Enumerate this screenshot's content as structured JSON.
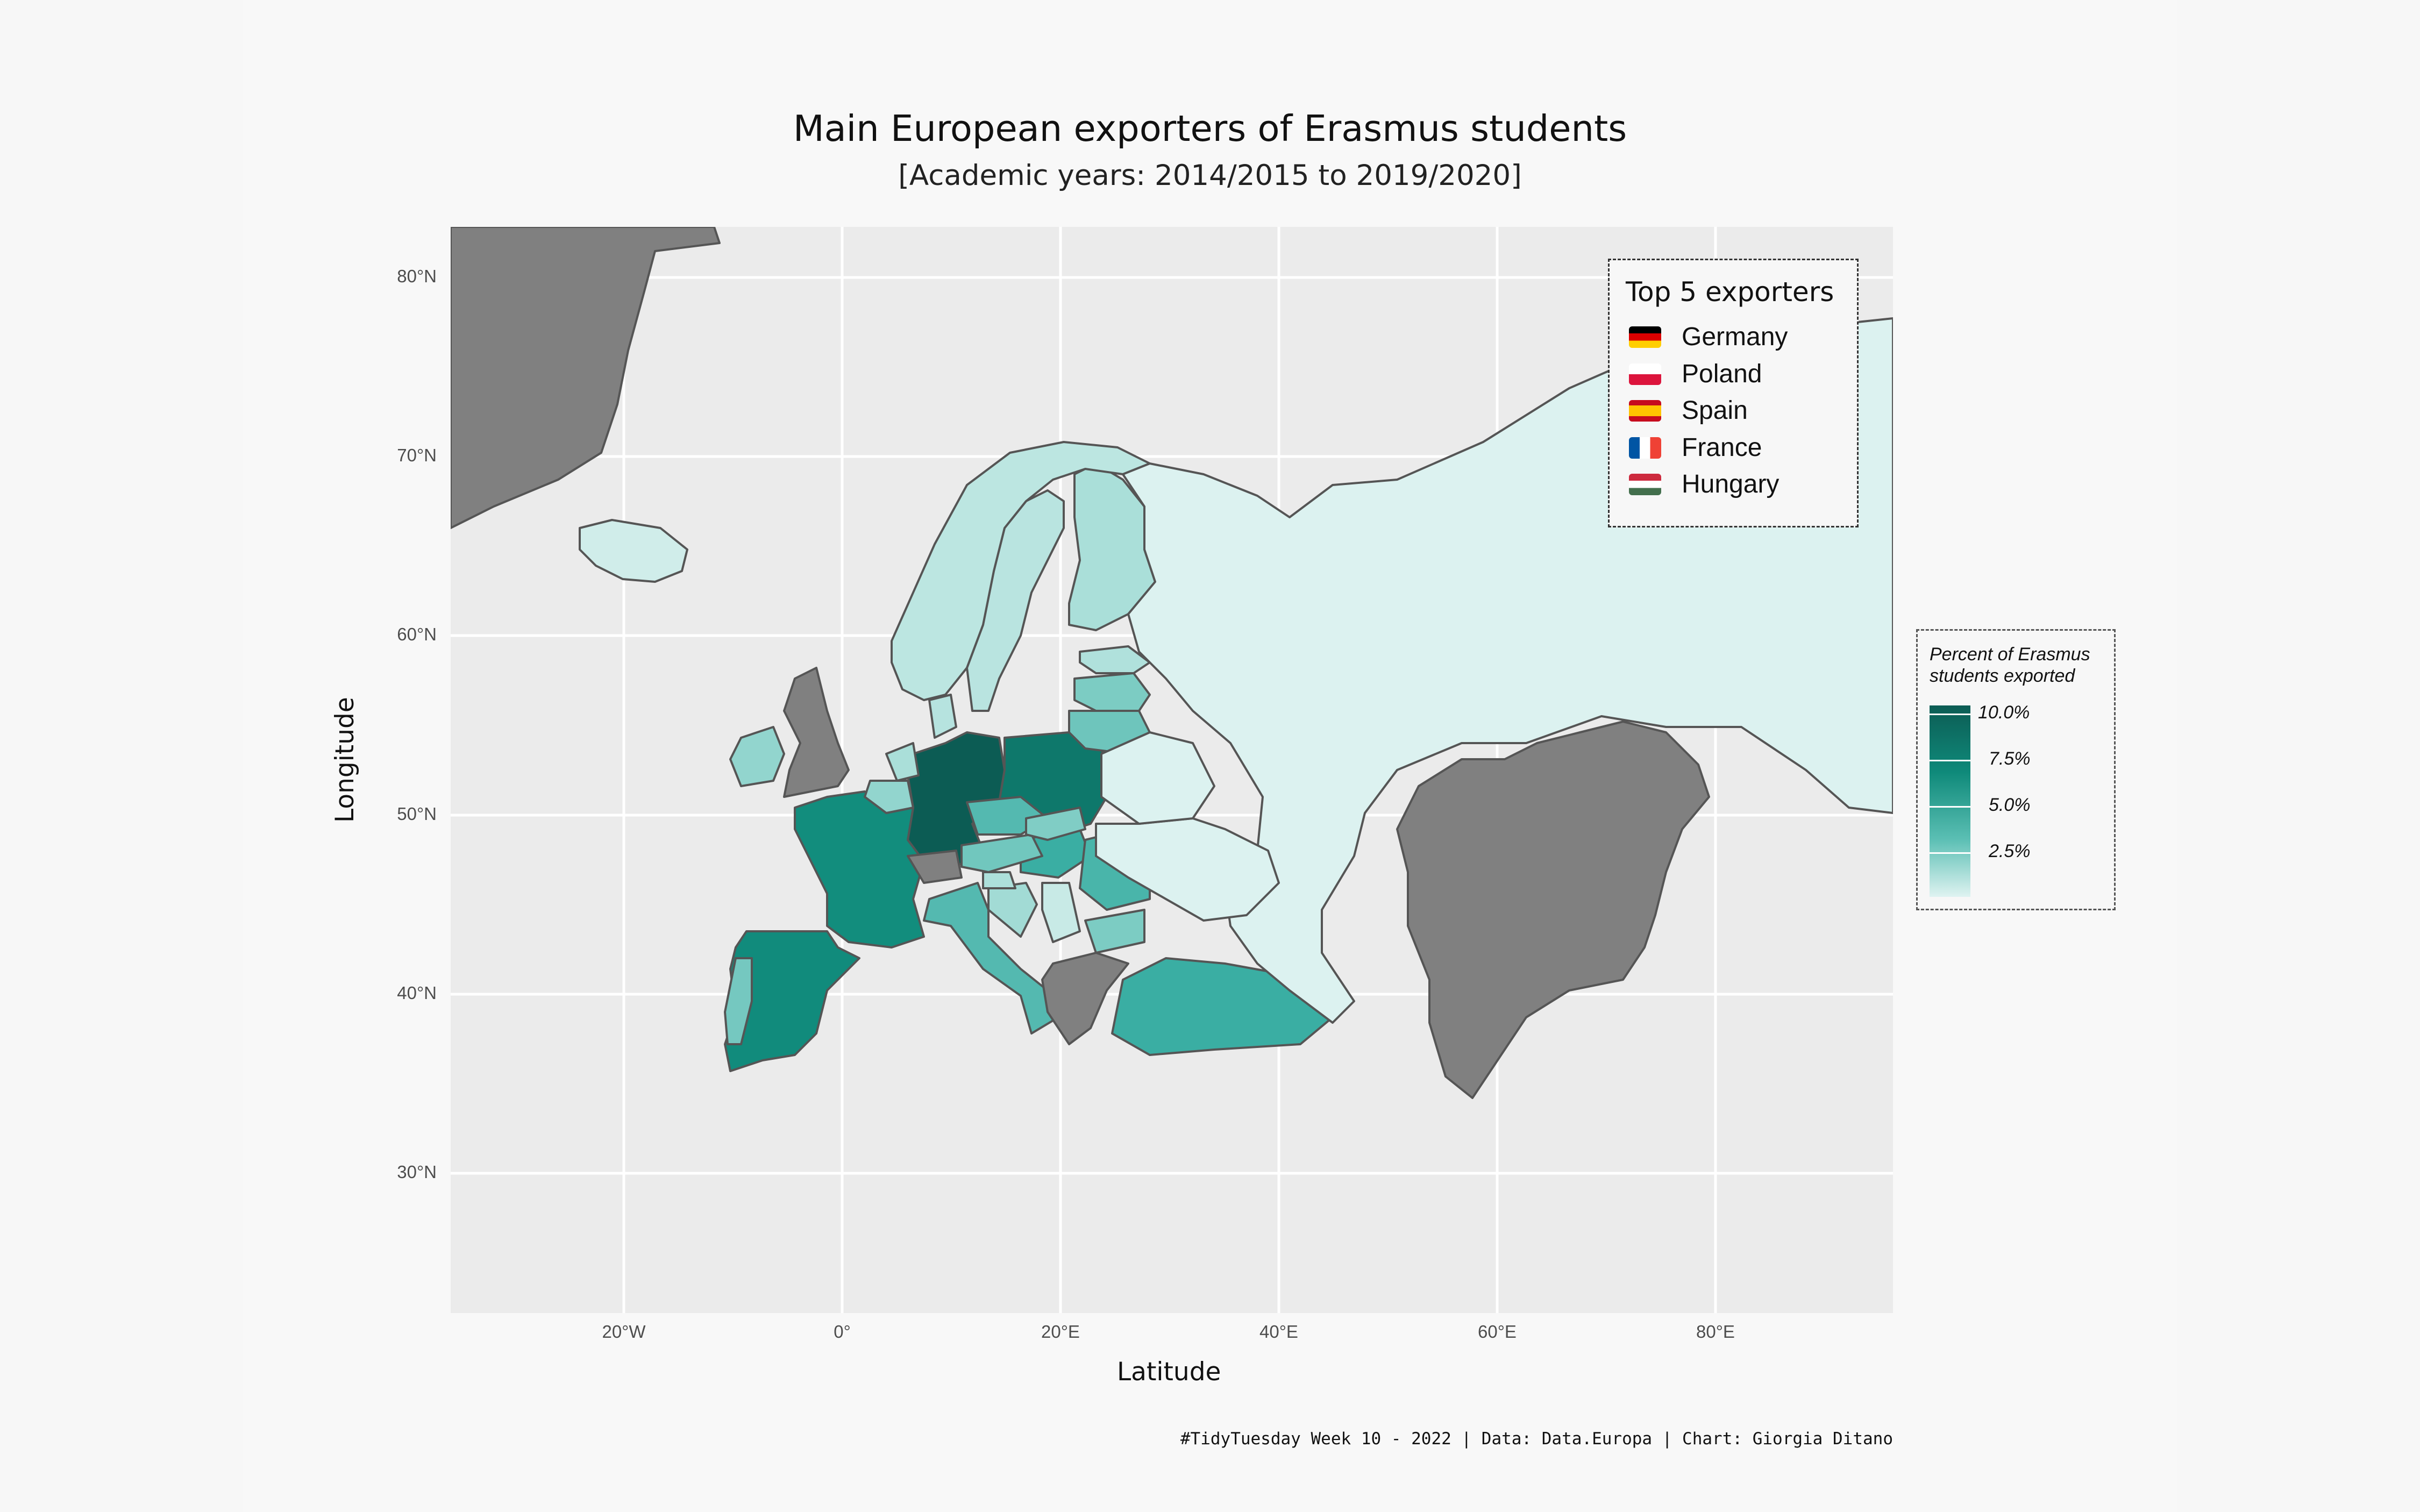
{
  "title": "Main European exporters of Erasmus students",
  "subtitle": "[Academic years: 2014/2015 to 2019/2020]",
  "axes": {
    "x_title": "Latitude",
    "y_title": "Longitude",
    "x_ticks": [
      "20°W",
      "0°",
      "20°E",
      "40°E",
      "60°E",
      "80°E"
    ],
    "y_ticks": [
      "80°N",
      "70°N",
      "60°N",
      "50°N",
      "40°N",
      "30°N"
    ]
  },
  "top_exporters": {
    "title": "Top 5 exporters",
    "items": [
      {
        "name": "Germany",
        "flag_colors": [
          "#000000",
          "#dd0000",
          "#ffce00"
        ]
      },
      {
        "name": "Poland",
        "flag_colors": [
          "#ffffff",
          "#dc143c"
        ]
      },
      {
        "name": "Spain",
        "flag_colors": [
          "#c60b1e",
          "#ffc400",
          "#c60b1e"
        ]
      },
      {
        "name": "France",
        "flag_colors": [
          "#0055a4",
          "#ffffff",
          "#ef4135"
        ]
      },
      {
        "name": "Hungary",
        "flag_colors": [
          "#cd2a3e",
          "#ffffff",
          "#436f4d"
        ]
      }
    ]
  },
  "color_legend": {
    "title": "Percent of Erasmus students exported",
    "labels": [
      "10.0%",
      "7.5%",
      "5.0%",
      "2.5%"
    ],
    "colors": {
      "high": "#0c5c54",
      "mid": "#0f8a7a",
      "low": "#dff3f1",
      "na": "#808080"
    }
  },
  "caption": "#TidyTuesday Week 10 - 2022 | Data: Data.Europa | Chart: Giorgia Ditano",
  "chart_data": {
    "type": "choropleth",
    "variable": "Percent of Erasmus students exported",
    "countries": [
      {
        "name": "Germany",
        "value": 10.0
      },
      {
        "name": "Poland",
        "value": 8.5
      },
      {
        "name": "Spain",
        "value": 7.4
      },
      {
        "name": "France",
        "value": 7.3
      },
      {
        "name": "Hungary",
        "value": 5.0
      },
      {
        "name": "Turkey",
        "value": 5.0
      },
      {
        "name": "Italy",
        "value": 4.3
      },
      {
        "name": "Romania",
        "value": 4.6
      },
      {
        "name": "Czech Republic",
        "value": 4.3
      },
      {
        "name": "Lithuania",
        "value": 3.6
      },
      {
        "name": "Latvia",
        "value": 3.2
      },
      {
        "name": "Portugal",
        "value": 3.4
      },
      {
        "name": "Austria",
        "value": 3.5
      },
      {
        "name": "Bulgaria",
        "value": 3.2
      },
      {
        "name": "Slovakia",
        "value": 3.1
      },
      {
        "name": "Belgium",
        "value": 2.6
      },
      {
        "name": "Ireland",
        "value": 2.6
      },
      {
        "name": "Croatia",
        "value": 2.1
      },
      {
        "name": "Netherlands",
        "value": 1.8
      },
      {
        "name": "Finland",
        "value": 1.8
      },
      {
        "name": "Slovenia",
        "value": 1.7
      },
      {
        "name": "Estonia",
        "value": 1.6
      },
      {
        "name": "Denmark",
        "value": 1.4
      },
      {
        "name": "Sweden",
        "value": 1.3
      },
      {
        "name": "Norway",
        "value": 1.2
      },
      {
        "name": "Serbia",
        "value": 0.8
      },
      {
        "name": "Russia",
        "value": 0.1
      },
      {
        "name": "Ukraine",
        "value": 0.1
      },
      {
        "name": "Belarus",
        "value": 0.1
      },
      {
        "name": "Iceland",
        "value": 0.5
      },
      {
        "name": "Greece",
        "value": null
      },
      {
        "name": "United Kingdom",
        "value": null
      },
      {
        "name": "Switzerland",
        "value": null
      },
      {
        "name": "Kazakhstan",
        "value": null
      },
      {
        "name": "Greenland",
        "value": null
      }
    ],
    "xlim": [
      -36,
      96
    ],
    "ylim": [
      22.5,
      83
    ],
    "x_ticks": [
      -20,
      0,
      20,
      40,
      60,
      80
    ],
    "y_ticks": [
      30,
      40,
      50,
      60,
      70,
      80
    ]
  }
}
